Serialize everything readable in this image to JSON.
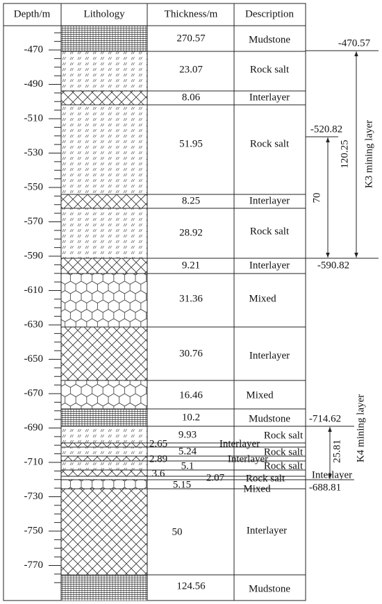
{
  "header": [
    "Depth/m",
    "Lithology",
    "Thickness/m",
    "Description"
  ],
  "depth_ticks": [
    -470,
    -490,
    -510,
    -530,
    -550,
    -570,
    -590,
    -610,
    -630,
    -650,
    -670,
    -690,
    -710,
    -730,
    -750,
    -770
  ],
  "layers": [
    {
      "thickness": 270.57,
      "description": "Mudstone"
    },
    {
      "thickness": 23.07,
      "description": "Rock salt"
    },
    {
      "thickness": 8.06,
      "description": "Interlayer"
    },
    {
      "thickness": 51.95,
      "description": "Rock salt"
    },
    {
      "thickness": 8.25,
      "description": "Interlayer"
    },
    {
      "thickness": 28.92,
      "description": "Rock salt"
    },
    {
      "thickness": 9.21,
      "description": "Interlayer"
    },
    {
      "thickness": 31.36,
      "description": "Mixed"
    },
    {
      "thickness": 30.76,
      "description": "Interlayer"
    },
    {
      "thickness": 16.46,
      "description": "Mixed"
    },
    {
      "thickness": 10.2,
      "description": "Mudstone"
    },
    {
      "thickness": 9.93,
      "description": "Rock salt"
    },
    {
      "thickness": 2.65,
      "description": "Interlayer"
    },
    {
      "thickness": 5.24,
      "description": "Rock salt"
    },
    {
      "thickness": 2.89,
      "description": "Interlayer"
    },
    {
      "thickness": 5.1,
      "description": "Rock salt"
    },
    {
      "thickness": 3.6,
      "description": "Interlayer"
    },
    {
      "thickness": 2.07,
      "description": "Rock salt"
    },
    {
      "thickness": 5.15,
      "description": "Mixed"
    },
    {
      "thickness": 50,
      "description": "Interlayer"
    },
    {
      "thickness": 124.56,
      "description": "Mudstone"
    }
  ],
  "annotations": {
    "k3": {
      "label": "K3 mining layer",
      "top": -470.57,
      "bottom": -590.82,
      "span": 120.25,
      "inner_top": -520.82,
      "inner_span": 70
    },
    "k4": {
      "label": "K4 mining layer",
      "top": -714.62,
      "bottom": -688.81,
      "span": 25.81
    }
  }
}
